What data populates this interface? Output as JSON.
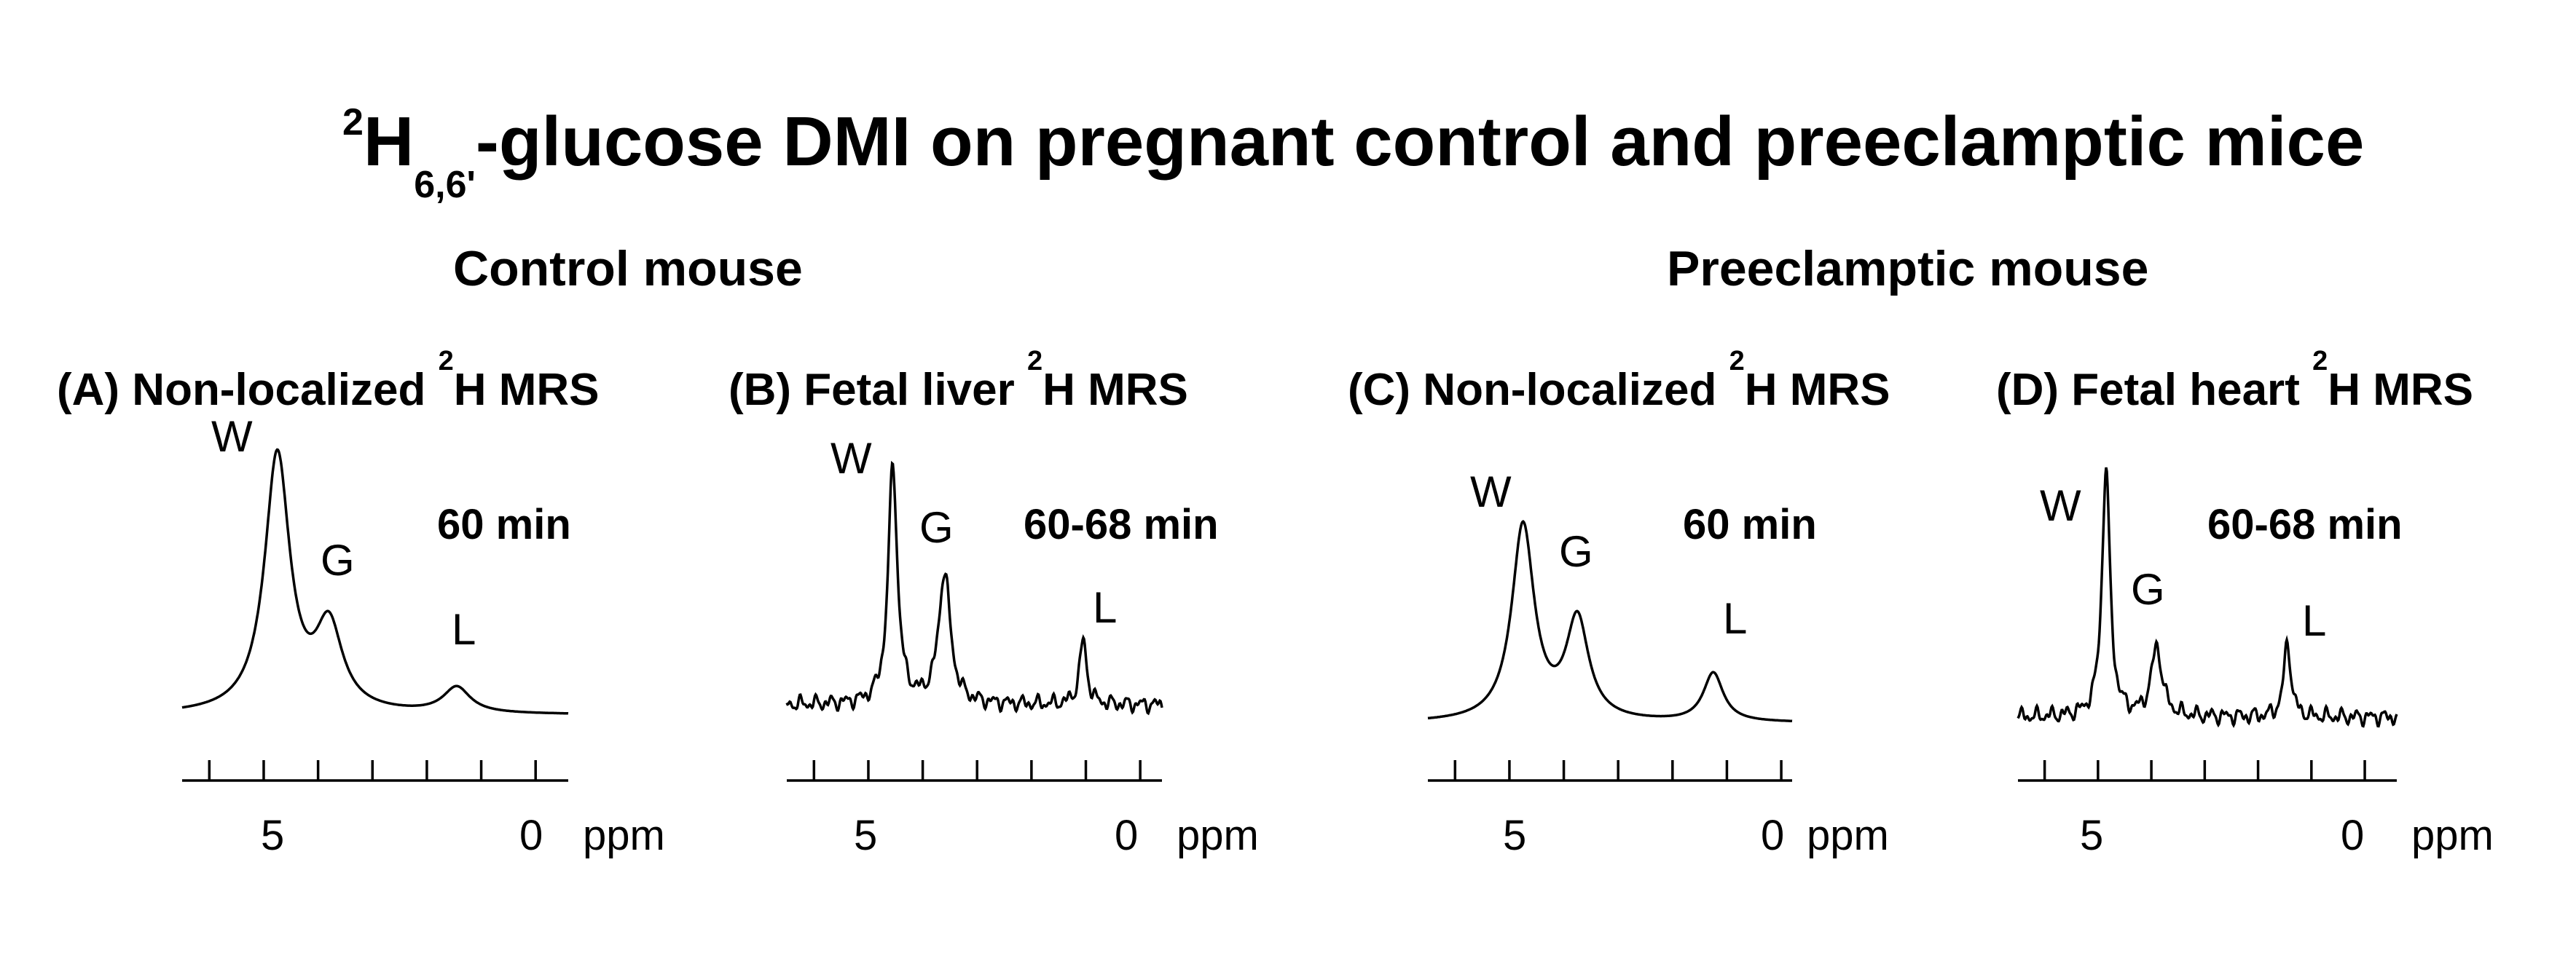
{
  "title": {
    "iso": "2",
    "h": "H",
    "sub": "6,6'",
    "rest": "-glucose DMI on pregnant control and preeclamptic mice"
  },
  "groups": [
    "Control mouse",
    "Preeclamptic mouse"
  ],
  "chart_data": [
    {
      "type": "line",
      "panel_title": "(A) Non-localized ",
      "panel_iso": "2",
      "panel_rest": "H MRS",
      "time_label": "60 min",
      "xlabel": "ppm",
      "xlim": [
        6.5,
        -0.6
      ],
      "x_ticks": [
        6,
        5,
        4,
        3,
        2,
        1,
        0
      ],
      "x_tick_labels": [
        "5",
        "0"
      ],
      "peaks": [
        {
          "label": "W",
          "ppm": 4.75,
          "height": 1.0,
          "width": 0.28
        },
        {
          "label": "G",
          "ppm": 3.8,
          "height": 0.32,
          "width": 0.3
        },
        {
          "label": "L",
          "ppm": 1.45,
          "height": 0.1,
          "width": 0.3
        }
      ],
      "noise": 0.0
    },
    {
      "type": "line",
      "panel_title": "(B) Fetal liver ",
      "panel_iso": "2",
      "panel_rest": "H MRS",
      "time_label": "60-68 min",
      "xlabel": "ppm",
      "xlim": [
        6.5,
        -0.4
      ],
      "x_ticks": [
        6,
        5,
        4,
        3,
        2,
        1,
        0
      ],
      "x_tick_labels": [
        "5",
        "0"
      ],
      "peaks": [
        {
          "label": "W",
          "ppm": 4.55,
          "height": 1.0,
          "width": 0.1
        },
        {
          "label": "G",
          "ppm": 3.6,
          "height": 0.55,
          "width": 0.13
        },
        {
          "label": "L",
          "ppm": 1.05,
          "height": 0.27,
          "width": 0.08
        }
      ],
      "noise": 0.04
    },
    {
      "type": "line",
      "panel_title": "(C) Non-localized ",
      "panel_iso": "2",
      "panel_rest": "H MRS",
      "time_label": "60  min",
      "xlabel": "ppm",
      "xlim": [
        6.5,
        -0.2
      ],
      "x_ticks": [
        6,
        5,
        4,
        3,
        2,
        1,
        0
      ],
      "x_tick_labels": [
        "5",
        "0"
      ],
      "peaks": [
        {
          "label": "W",
          "ppm": 4.75,
          "height": 0.88,
          "width": 0.25
        },
        {
          "label": "G",
          "ppm": 3.75,
          "height": 0.45,
          "width": 0.25
        },
        {
          "label": "L",
          "ppm": 1.25,
          "height": 0.22,
          "width": 0.22
        }
      ],
      "noise": 0.0
    },
    {
      "type": "line",
      "panel_title": "(D) Fetal heart ",
      "panel_iso": "2",
      "panel_rest": "H MRS",
      "time_label": "60-68 min",
      "xlabel": "ppm",
      "xlim": [
        6.5,
        -0.6
      ],
      "x_ticks": [
        6,
        5,
        4,
        3,
        2,
        1,
        0
      ],
      "x_tick_labels": [
        "5",
        "0"
      ],
      "peaks": [
        {
          "label": "W",
          "ppm": 4.85,
          "height": 1.0,
          "width": 0.09
        },
        {
          "label": "G",
          "ppm": 3.9,
          "height": 0.28,
          "width": 0.12
        },
        {
          "label": "L",
          "ppm": 1.45,
          "height": 0.3,
          "width": 0.08
        }
      ],
      "noise": 0.04
    }
  ]
}
